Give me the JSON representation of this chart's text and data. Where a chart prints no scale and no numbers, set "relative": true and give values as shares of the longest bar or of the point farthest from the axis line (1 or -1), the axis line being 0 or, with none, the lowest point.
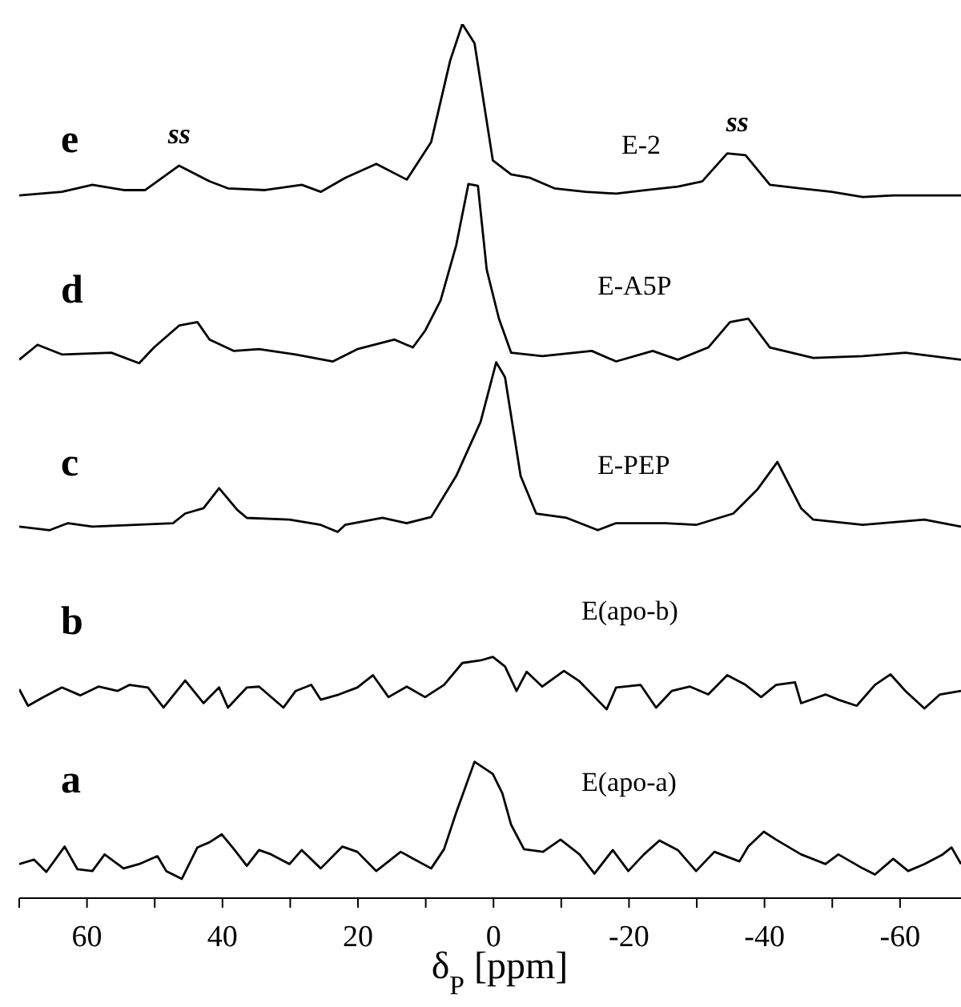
{
  "chart_data": {
    "type": "line",
    "relative": true,
    "xlim": [
      70,
      -69
    ],
    "xticks": [
      {
        "value": 70,
        "label": null
      },
      60,
      {
        "value": 50,
        "label": null
      },
      40,
      {
        "value": 30,
        "label": null
      },
      20,
      {
        "value": 10,
        "label": null
      },
      0,
      {
        "value": -10,
        "label": null
      },
      -20,
      {
        "value": -30,
        "label": null
      },
      -40,
      {
        "value": -50,
        "label": null
      },
      -60
    ],
    "xlabel": "δ$_{P}$ [ppm]",
    "annotations": [
      "e",
      "d",
      "c",
      "b",
      "a",
      {
        "text": "ss",
        "x": 46.4,
        "y": 0.838
      },
      {
        "text": "ss",
        "x": -36,
        "y": 0.852
      }
    ],
    "series": [
      {
        "name": "E-2",
        "color": "#000000",
        "x": [
          70,
          63.7,
          59.2,
          54.6,
          51.4,
          46.4,
          41.9,
          39.2,
          33.7,
          28.3,
          25.5,
          21.9,
          17.3,
          12.8,
          9.2,
          6.4,
          4.6,
          2.8,
          0.1,
          -2.6,
          -5.4,
          -9.0,
          -13.6,
          -18.1,
          -22.6,
          -27.2,
          -30.8,
          -34.5,
          -37.2,
          -40.8,
          -45.3,
          -49.9,
          -54.5,
          -59.0,
          -63.6,
          -69.0
        ],
        "values": [
          0.804,
          0.808,
          0.816,
          0.81,
          0.81,
          0.838,
          0.82,
          0.812,
          0.81,
          0.816,
          0.808,
          0.824,
          0.84,
          0.822,
          0.865,
          0.958,
          1,
          0.978,
          0.844,
          0.828,
          0.824,
          0.812,
          0.808,
          0.806,
          0.81,
          0.814,
          0.82,
          0.852,
          0.85,
          0.816,
          0.812,
          0.808,
          0.802,
          0.804,
          0.804,
          0.804
        ]
      },
      {
        "name": "E-A5P",
        "color": "#000000",
        "x": [
          70,
          67.3,
          63.7,
          56.4,
          52.3,
          50.1,
          46.4,
          43.7,
          41.9,
          38.3,
          34.6,
          29.2,
          23.7,
          20.1,
          14.6,
          11.9,
          10.1,
          7.8,
          5.5,
          3.7,
          2.3,
          1.0,
          -0.8,
          -2.6,
          -7.2,
          -14.5,
          -18.1,
          -23.5,
          -27.2,
          -31.7,
          -34.9,
          -37.6,
          -40.8,
          -47.2,
          -54.5,
          -60.8,
          -69.0
        ],
        "values": [
          0.616,
          0.633,
          0.622,
          0.624,
          0.612,
          0.63,
          0.655,
          0.659,
          0.639,
          0.626,
          0.628,
          0.622,
          0.614,
          0.628,
          0.639,
          0.63,
          0.649,
          0.684,
          0.747,
          0.817,
          0.815,
          0.719,
          0.663,
          0.624,
          0.62,
          0.626,
          0.614,
          0.626,
          0.616,
          0.63,
          0.659,
          0.663,
          0.63,
          0.618,
          0.62,
          0.624,
          0.616
        ]
      },
      {
        "name": "E-PEP",
        "color": "#000000",
        "x": [
          70,
          65.5,
          62.8,
          59.2,
          52.8,
          47.3,
          45.5,
          42.8,
          40.5,
          37.8,
          36.4,
          30.1,
          25.5,
          23.0,
          21.9,
          16.4,
          12.8,
          9.2,
          5.5,
          1.9,
          -0.4,
          -1.7,
          -4.0,
          -6.3,
          -10.8,
          -15.4,
          -18.1,
          -25.4,
          -29.9,
          -35.4,
          -39.0,
          -41.9,
          -45.4,
          -47.2,
          -54.5,
          -63.6,
          -69.0
        ],
        "values": [
          0.425,
          0.421,
          0.429,
          0.425,
          0.427,
          0.429,
          0.44,
          0.446,
          0.469,
          0.444,
          0.435,
          0.433,
          0.427,
          0.419,
          0.427,
          0.435,
          0.429,
          0.436,
          0.483,
          0.545,
          0.613,
          0.596,
          0.483,
          0.44,
          0.435,
          0.421,
          0.429,
          0.429,
          0.427,
          0.44,
          0.468,
          0.499,
          0.446,
          0.433,
          0.427,
          0.433,
          0.425
        ]
      },
      {
        "name": "E(apo-b)",
        "color": "#000000",
        "x": [
          70,
          68.7,
          66.4,
          63.7,
          61.0,
          58.3,
          55.5,
          53.7,
          51.0,
          48.7,
          45.5,
          42.8,
          40.5,
          39.2,
          36.4,
          34.6,
          31.0,
          29.2,
          26.9,
          25.5,
          22.8,
          20.1,
          17.8,
          15.5,
          12.8,
          10.1,
          7.3,
          4.6,
          1.9,
          0.1,
          -1.7,
          -3.4,
          -4.9,
          -7.2,
          -10.4,
          -12.7,
          -16.7,
          -18.1,
          -21.7,
          -24.0,
          -26.3,
          -29.0,
          -31.7,
          -34.5,
          -37.2,
          -39.5,
          -41.7,
          -44.5,
          -45.4,
          -49.0,
          -50.9,
          -53.6,
          -56.3,
          -58.6,
          -60.8,
          -63.6,
          -65.9,
          -69.0
        ],
        "values": [
          0.239,
          0.22,
          0.23,
          0.241,
          0.232,
          0.242,
          0.237,
          0.244,
          0.241,
          0.218,
          0.249,
          0.223,
          0.241,
          0.218,
          0.241,
          0.242,
          0.218,
          0.237,
          0.244,
          0.227,
          0.233,
          0.241,
          0.255,
          0.23,
          0.242,
          0.23,
          0.244,
          0.269,
          0.272,
          0.276,
          0.265,
          0.237,
          0.259,
          0.242,
          0.26,
          0.248,
          0.216,
          0.241,
          0.244,
          0.218,
          0.237,
          0.242,
          0.233,
          0.255,
          0.244,
          0.23,
          0.244,
          0.247,
          0.223,
          0.233,
          0.227,
          0.22,
          0.244,
          0.256,
          0.237,
          0.217,
          0.233,
          0.237
        ]
      },
      {
        "name": "E(apo-a)",
        "color": "#000000",
        "x": [
          70,
          67.8,
          66.0,
          63.3,
          61.4,
          59.2,
          57.4,
          54.6,
          52.3,
          49.6,
          48.3,
          46.0,
          43.7,
          41.9,
          40.1,
          38.3,
          36.4,
          34.6,
          32.8,
          30.1,
          28.3,
          25.5,
          22.3,
          20.1,
          17.3,
          13.7,
          9.2,
          7.3,
          5.5,
          2.8,
          0.1,
          -1.3,
          -2.6,
          -4.5,
          -7.3,
          -9.9,
          -12.7,
          -14.9,
          -17.6,
          -19.9,
          -22.2,
          -24.5,
          -27.2,
          -29.9,
          -32.6,
          -36.3,
          -37.6,
          -39.9,
          -41.7,
          -45.4,
          -49.0,
          -50.9,
          -54.5,
          -56.3,
          -59.0,
          -61.2,
          -63.6,
          -66.3,
          -67.6,
          -69.0
        ],
        "values": [
          0.039,
          0.044,
          0.03,
          0.059,
          0.033,
          0.031,
          0.05,
          0.034,
          0.039,
          0.048,
          0.031,
          0.022,
          0.058,
          0.064,
          0.073,
          0.056,
          0.037,
          0.055,
          0.05,
          0.039,
          0.055,
          0.034,
          0.059,
          0.053,
          0.031,
          0.053,
          0.034,
          0.056,
          0.098,
          0.156,
          0.142,
          0.12,
          0.084,
          0.056,
          0.053,
          0.067,
          0.05,
          0.028,
          0.055,
          0.031,
          0.05,
          0.066,
          0.055,
          0.031,
          0.053,
          0.042,
          0.059,
          0.076,
          0.067,
          0.05,
          0.039,
          0.05,
          0.034,
          0.027,
          0.045,
          0.031,
          0.039,
          0.05,
          0.058,
          0.039
        ]
      }
    ]
  }
}
